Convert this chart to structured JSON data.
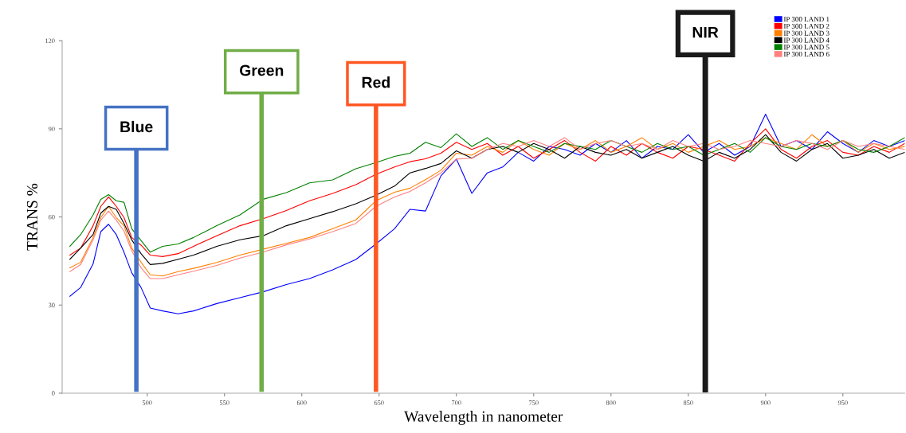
{
  "chart_data": {
    "type": "line",
    "xlabel": "Wavelength in nanometer",
    "ylabel": "TRANS %",
    "x": [
      450,
      457,
      465,
      470,
      475,
      480,
      485,
      490,
      496,
      502,
      510,
      520,
      530,
      545,
      560,
      575,
      590,
      605,
      620,
      635,
      648,
      660,
      670,
      680,
      690,
      700,
      710,
      720,
      730,
      740,
      750,
      760,
      770,
      780,
      790,
      800,
      810,
      820,
      830,
      840,
      850,
      860,
      870,
      880,
      890,
      900,
      910,
      920,
      930,
      940,
      950,
      960,
      970,
      980,
      990
    ],
    "series": [
      {
        "name": "IP 300 LAND 1",
        "color": "#0000ff",
        "values": [
          33,
          36,
          44,
          55,
          57.5,
          54,
          48,
          41,
          36,
          29,
          28,
          27,
          28,
          30.5,
          32.5,
          34.5,
          37,
          39,
          42,
          45.5,
          50.8,
          56,
          62.6,
          62,
          74,
          79.7,
          68,
          75,
          77,
          82,
          79,
          84,
          83,
          81,
          85,
          82,
          86,
          80,
          84,
          83,
          88,
          82,
          85,
          81,
          84,
          95,
          84,
          86,
          83,
          89,
          85,
          82,
          86,
          84,
          86
        ]
      },
      {
        "name": "IP 300 LAND 2",
        "color": "#ff0000",
        "values": [
          47,
          49.4,
          57,
          63.6,
          66.8,
          63.6,
          59.8,
          53,
          50.4,
          47,
          46.5,
          47.5,
          50,
          53.6,
          57,
          59.4,
          62.2,
          65.5,
          68,
          71,
          74.5,
          77,
          78.8,
          79.8,
          81.7,
          85.4,
          83,
          85,
          81,
          84,
          80,
          83,
          86,
          82,
          79,
          84,
          81,
          85,
          82,
          80,
          84,
          83,
          81,
          79,
          85,
          90,
          83,
          80,
          84,
          86,
          82,
          81,
          84,
          82,
          85
        ]
      },
      {
        "name": "IP 300 LAND 3",
        "color": "#ff8000",
        "values": [
          42.7,
          44.6,
          53,
          59.8,
          63.6,
          59.8,
          57,
          49.4,
          44.6,
          40.3,
          39.9,
          41.4,
          42.5,
          44.5,
          47,
          49,
          51,
          53,
          56,
          59,
          65.5,
          68.4,
          69.8,
          72.7,
          75.9,
          81.7,
          81,
          84,
          82,
          86,
          83,
          81,
          85,
          83,
          86,
          82,
          84,
          87,
          83,
          85,
          82,
          84,
          86,
          83,
          84,
          87,
          85,
          83,
          88,
          84,
          86,
          82,
          85,
          83,
          84
        ]
      },
      {
        "name": "IP 300 LAND 4",
        "color": "#000000",
        "values": [
          45.6,
          49.4,
          54,
          61.3,
          63.6,
          62.6,
          57.8,
          52.2,
          47.5,
          43.8,
          44.2,
          45.6,
          47,
          50,
          52.2,
          53.6,
          57,
          59.4,
          61.8,
          64.5,
          67.4,
          70.5,
          75,
          76.5,
          78.2,
          82.5,
          80,
          83,
          84,
          82,
          85,
          83,
          80,
          84,
          82,
          81,
          83,
          80,
          82,
          84,
          81,
          79,
          82,
          80,
          83,
          88,
          82,
          79,
          83,
          85,
          80,
          81,
          83,
          80,
          82
        ]
      },
      {
        "name": "IP 300 LAND 5",
        "color": "#008000",
        "values": [
          50,
          54,
          60.7,
          66,
          67.6,
          65.5,
          65,
          56,
          52,
          48,
          50,
          50.8,
          53,
          57,
          60.7,
          66,
          68.3,
          71.6,
          72.6,
          76.4,
          78.5,
          80.6,
          81.7,
          85.4,
          83.6,
          88.3,
          84,
          87,
          83,
          86,
          84,
          82,
          85,
          84,
          83,
          86,
          84,
          82,
          85,
          83,
          84,
          81,
          83,
          85,
          82,
          87,
          84,
          83,
          85,
          84,
          86,
          83,
          82,
          84,
          87
        ]
      },
      {
        "name": "IP 300 LAND 6",
        "color": "#ff8080",
        "values": [
          41.4,
          43.8,
          52.2,
          58.9,
          62,
          58.9,
          55.2,
          48.5,
          42.7,
          39,
          39,
          40.3,
          41.5,
          43.5,
          46,
          48,
          50.5,
          52.5,
          55,
          57.8,
          63.6,
          66.8,
          68.7,
          71.6,
          75,
          79.7,
          80,
          83,
          85,
          84,
          86,
          84,
          87,
          83,
          85,
          86,
          84,
          85,
          83,
          86,
          84,
          85,
          83,
          84,
          86,
          85,
          84,
          86,
          85,
          83,
          86,
          84,
          85,
          84,
          83
        ]
      }
    ],
    "xlim": [
      445,
      990
    ],
    "xticks": [
      500,
      550,
      600,
      650,
      700,
      750,
      800,
      850,
      900,
      950
    ],
    "ylim": [
      0,
      120
    ],
    "yticks": [
      0,
      30,
      60,
      90,
      120
    ],
    "ref_lines": [
      {
        "axis": "x",
        "value": 493,
        "label": "Blue",
        "color": "#4472c4"
      },
      {
        "axis": "x",
        "value": 574,
        "label": "Green",
        "color": "#70ad47"
      },
      {
        "axis": "x",
        "value": 648,
        "label": "Red",
        "color": "#ff5722"
      },
      {
        "axis": "x",
        "value": 861,
        "label": "NIR",
        "color": "#1a1a1a"
      }
    ],
    "legend": "top right",
    "grid": false,
    "line_style": "solid",
    "marker": "none"
  }
}
